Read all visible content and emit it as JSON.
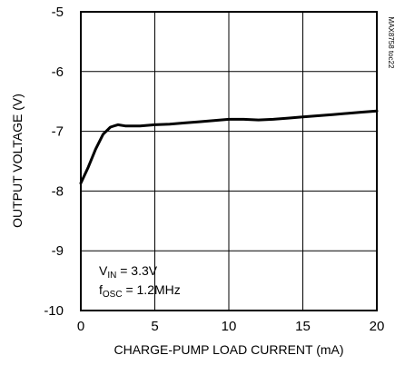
{
  "chart_data": {
    "type": "line",
    "title": "",
    "xlabel": "CHARGE-PUMP LOAD CURRENT (mA)",
    "ylabel": "OUTPUT VOLTAGE (V)",
    "xlim": [
      0,
      20
    ],
    "ylim": [
      -10,
      -5
    ],
    "xticks": [
      0,
      5,
      10,
      15,
      20
    ],
    "yticks": [
      -5,
      -6,
      -7,
      -8,
      -9,
      -10
    ],
    "grid": true,
    "series": [
      {
        "x": [
          0,
          0.5,
          1,
          1.5,
          2,
          2.5,
          3,
          4,
          5,
          6,
          7,
          8,
          9,
          10,
          11,
          12,
          13,
          14,
          15,
          16,
          17,
          18,
          19,
          20
        ],
        "y": [
          -7.87,
          -7.6,
          -7.3,
          -7.05,
          -6.93,
          -6.89,
          -6.91,
          -6.91,
          -6.89,
          -6.88,
          -6.86,
          -6.84,
          -6.82,
          -6.8,
          -6.8,
          -6.81,
          -6.8,
          -6.78,
          -6.76,
          -6.74,
          -6.72,
          -6.7,
          -6.68,
          -6.66
        ]
      }
    ],
    "annotations": {
      "vin_main": "V",
      "vin_sub": "IN",
      "vin_value": " = 3.3V",
      "fosc_main": "f",
      "fosc_sub": "OSC",
      "fosc_value": " = 1.2MHz"
    },
    "side_label": "MAX8758 toc22"
  }
}
